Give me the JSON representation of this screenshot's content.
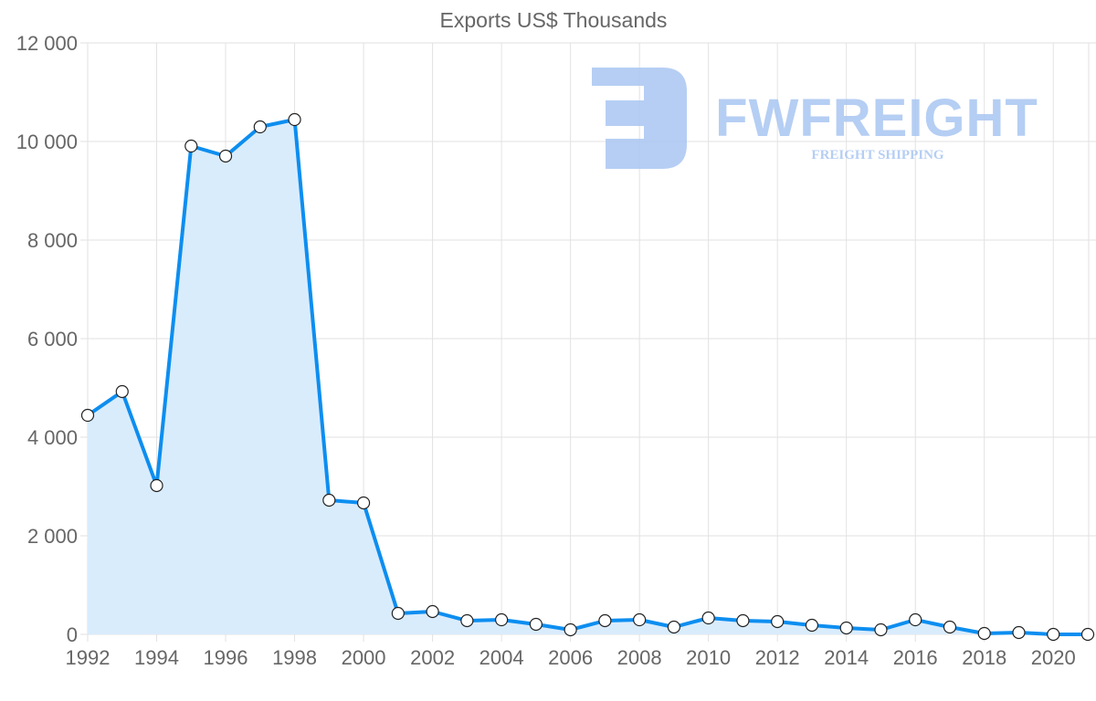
{
  "chart_data": {
    "type": "area",
    "title": "Exports US$ Thousands",
    "xlabel": "",
    "ylabel": "",
    "ylim": [
      0,
      12000
    ],
    "xlim": [
      1992,
      2021
    ],
    "grid": true,
    "y_ticks": [
      "0",
      "2 000",
      "4 000",
      "6 000",
      "8 000",
      "10 000",
      "12 000"
    ],
    "y_tick_values": [
      0,
      2000,
      4000,
      6000,
      8000,
      10000,
      12000
    ],
    "x_ticks": [
      "1992",
      "1994",
      "1996",
      "1998",
      "2000",
      "2002",
      "2004",
      "2006",
      "2008",
      "2010",
      "2012",
      "2014",
      "2016",
      "2018",
      "2020"
    ],
    "x": [
      1992,
      1993,
      1994,
      1995,
      1996,
      1997,
      1998,
      1999,
      2000,
      2001,
      2002,
      2003,
      2004,
      2005,
      2006,
      2007,
      2008,
      2009,
      2010,
      2011,
      2012,
      2013,
      2014,
      2015,
      2016,
      2017,
      2018,
      2019,
      2020,
      2021
    ],
    "series": [
      {
        "name": "Exports US$ Thousands",
        "values": [
          4444,
          4926,
          3019,
          9907,
          9704,
          10296,
          10444,
          2722,
          2667,
          426,
          463,
          278,
          296,
          204,
          93,
          278,
          296,
          148,
          333,
          278,
          259,
          185,
          130,
          93,
          296,
          148,
          19,
          37,
          0,
          0
        ]
      }
    ],
    "colors": {
      "line": "#0d8ef0",
      "fill": "#d9ecfc",
      "grid": "#e2e2e2",
      "text": "#666666"
    }
  },
  "watermark": {
    "brand": "FWFREIGHT",
    "tagline": "FREIGHT SHIPPING",
    "color": "#a9c6f2"
  }
}
